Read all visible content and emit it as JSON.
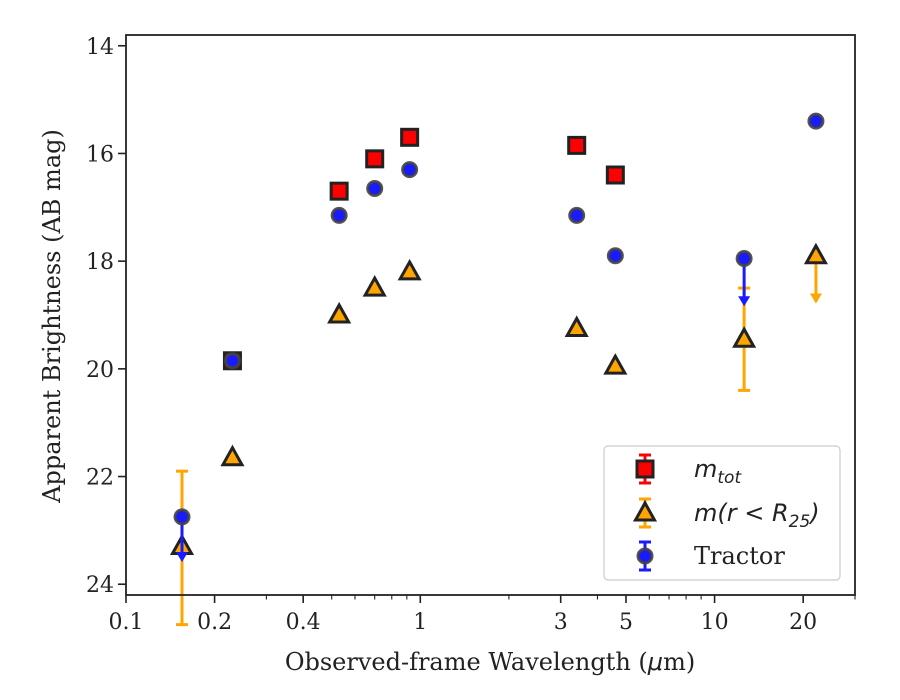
{
  "chart_data": {
    "type": "scatter",
    "xlabel_prefix": "Observed-frame Wavelength (",
    "xlabel_unit_greek": "μ",
    "xlabel_suffix": "m)",
    "ylabel": "Apparent Brightness (AB mag)",
    "xscale": "log",
    "xlim": [
      0.1,
      30
    ],
    "ylim": [
      24.2,
      13.8
    ],
    "y_inverted": true,
    "grid": false,
    "legend_position": "lower-right",
    "x_ticks": [
      0.1,
      0.2,
      0.4,
      1,
      3,
      5,
      10,
      20
    ],
    "x_tick_labels": [
      "0.1",
      "0.2",
      "0.4",
      "1",
      "3",
      "5",
      "10",
      "20"
    ],
    "y_ticks": [
      14,
      16,
      18,
      20,
      22,
      24
    ],
    "y_tick_labels": [
      "14",
      "16",
      "18",
      "20",
      "22",
      "24"
    ],
    "series": [
      {
        "key": "mtot",
        "legend_main": "m",
        "legend_sub": "tot",
        "marker": "square",
        "color": "#ff0000",
        "edgecolor": "#222222",
        "points": [
          {
            "x": 0.23,
            "y": 19.85
          },
          {
            "x": 0.53,
            "y": 16.7
          },
          {
            "x": 0.7,
            "y": 16.1
          },
          {
            "x": 0.92,
            "y": 15.7
          },
          {
            "x": 3.4,
            "y": 15.85
          },
          {
            "x": 4.6,
            "y": 16.4
          }
        ]
      },
      {
        "key": "mr25",
        "legend_main": "m(r < R",
        "legend_sub": "25",
        "legend_end": ")",
        "marker": "triangle",
        "color": "#ffa500",
        "edgecolor": "#222222",
        "points": [
          {
            "x": 0.155,
            "y": 23.3,
            "err_low": 1.4,
            "err_high": 1.45
          },
          {
            "x": 0.23,
            "y": 21.65
          },
          {
            "x": 0.53,
            "y": 19.0
          },
          {
            "x": 0.7,
            "y": 18.5
          },
          {
            "x": 0.92,
            "y": 18.2
          },
          {
            "x": 3.4,
            "y": 19.25
          },
          {
            "x": 4.6,
            "y": 19.95
          },
          {
            "x": 12.6,
            "y": 19.45,
            "err_low": 0.95,
            "err_high": 0.95
          },
          {
            "x": 22.1,
            "y": 17.9,
            "upper_limit": true,
            "arrow_to": 18.75
          }
        ]
      },
      {
        "key": "tractor",
        "legend_main": "Tractor",
        "marker": "circle",
        "color": "#1a1aff",
        "edgecolor": "#444444",
        "points": [
          {
            "x": 0.155,
            "y": 22.75,
            "upper_limit": true,
            "arrow_to": 23.55
          },
          {
            "x": 0.23,
            "y": 19.85
          },
          {
            "x": 0.53,
            "y": 17.15
          },
          {
            "x": 0.7,
            "y": 16.65
          },
          {
            "x": 0.92,
            "y": 16.3
          },
          {
            "x": 3.4,
            "y": 17.15
          },
          {
            "x": 4.6,
            "y": 17.9
          },
          {
            "x": 12.6,
            "y": 17.95,
            "upper_limit": true,
            "arrow_to": 18.8
          },
          {
            "x": 22.1,
            "y": 15.4
          }
        ]
      }
    ]
  }
}
